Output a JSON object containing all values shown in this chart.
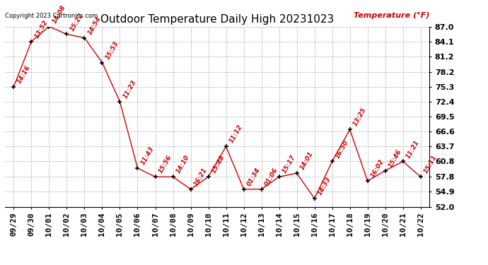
{
  "title": "Outdoor Temperature Daily High 20231023",
  "copyright": "Copyright 2023 Cartronics.com",
  "ylabel": "Temperature (°F)",
  "background_color": "#ffffff",
  "line_color": "#cc0000",
  "marker_color": "#000000",
  "grid_color": "#bbbbbb",
  "dates": [
    "09/29",
    "09/30",
    "10/01",
    "10/02",
    "10/03",
    "10/04",
    "10/05",
    "10/06",
    "10/07",
    "10/08",
    "10/09",
    "10/10",
    "10/11",
    "10/12",
    "10/13",
    "10/14",
    "10/15",
    "10/16",
    "10/17",
    "10/18",
    "10/19",
    "10/20",
    "10/21",
    "10/22"
  ],
  "temps": [
    75.3,
    84.1,
    87.0,
    85.5,
    84.8,
    80.0,
    72.4,
    59.5,
    57.8,
    57.8,
    55.4,
    57.8,
    63.7,
    55.4,
    55.4,
    57.8,
    58.5,
    53.6,
    60.8,
    67.0,
    57.0,
    59.0,
    60.8,
    57.8
  ],
  "time_labels": [
    "14:16",
    "13:52",
    "14:08",
    "15:22",
    "14:54",
    "15:53",
    "11:23",
    "11:43",
    "15:56",
    "14:10",
    "16:21",
    "15:48",
    "11:12",
    "01:34",
    "01:06",
    "15:17",
    "14:01",
    "14:33",
    "16:50",
    "13:25",
    "16:02",
    "15:46",
    "11:21",
    "15:11"
  ],
  "ylim_min": 52.0,
  "ylim_max": 87.0,
  "yticks": [
    52.0,
    54.9,
    57.8,
    60.8,
    63.7,
    66.6,
    69.5,
    72.4,
    75.3,
    78.2,
    81.2,
    84.1,
    87.0
  ],
  "title_fontsize": 11,
  "label_fontsize": 8,
  "tick_fontsize": 8,
  "annotation_fontsize": 6.5,
  "text_color_red": "#cc0000",
  "text_color_black": "#000000",
  "fig_width": 6.9,
  "fig_height": 3.75,
  "dpi": 100
}
